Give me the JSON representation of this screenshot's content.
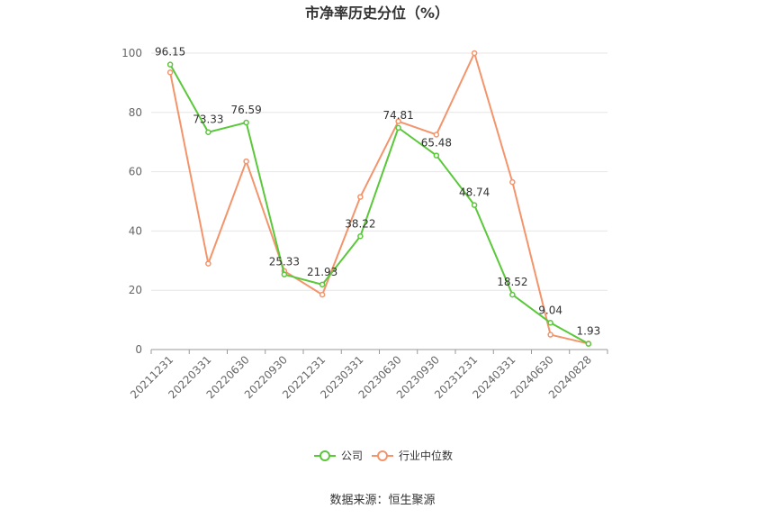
{
  "chart_data": {
    "type": "line",
    "title": "市净率历史分位（%）",
    "categories": [
      "20211231",
      "20220331",
      "20220630",
      "20220930",
      "20221231",
      "20230331",
      "20230630",
      "20230930",
      "20231231",
      "20240331",
      "20240630",
      "20240828"
    ],
    "ylim": [
      0,
      100
    ],
    "yticks": [
      0,
      20,
      40,
      60,
      80,
      100
    ],
    "grid": true,
    "legend_position": "bottom",
    "series": [
      {
        "name": "公司",
        "color": "#5ac83a",
        "values": [
          96.15,
          73.33,
          76.59,
          25.33,
          21.93,
          38.22,
          74.81,
          65.48,
          48.74,
          18.52,
          9.04,
          1.93
        ],
        "labels": [
          "96.15",
          "73.33",
          "76.59",
          "25.33",
          "21.93",
          "38.22",
          "74.81",
          "65.48",
          "48.74",
          "18.52",
          "9.04",
          "1.93"
        ]
      },
      {
        "name": "行业中位数",
        "color": "#f4946b",
        "values": [
          93.5,
          29,
          63.5,
          26.5,
          18.5,
          51.5,
          77,
          72.5,
          100,
          56.5,
          5,
          2
        ]
      }
    ]
  },
  "source_text": "数据来源：恒生聚源"
}
